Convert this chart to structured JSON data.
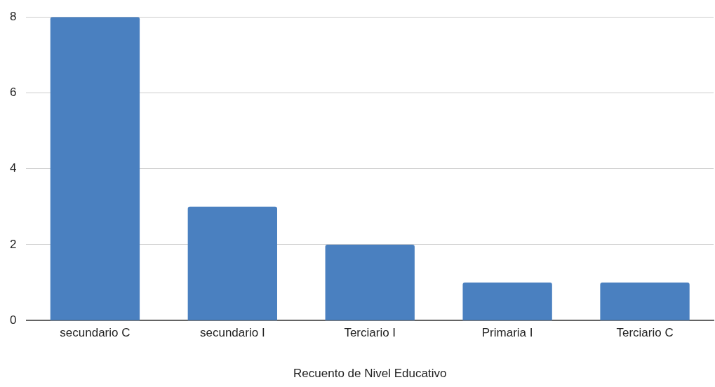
{
  "chart_data": {
    "type": "bar",
    "categories": [
      "secundario C",
      "secundario I",
      "Terciario I",
      "Primaria I",
      "Terciario C"
    ],
    "values": [
      8,
      3,
      2,
      1,
      1
    ],
    "color": "#4a80c0",
    "xlabel": "Recuento de Nivel Educativo",
    "ylim": [
      0,
      8
    ],
    "yticks": [
      0,
      2,
      4,
      6,
      8
    ],
    "grid": "y",
    "legend": false
  }
}
